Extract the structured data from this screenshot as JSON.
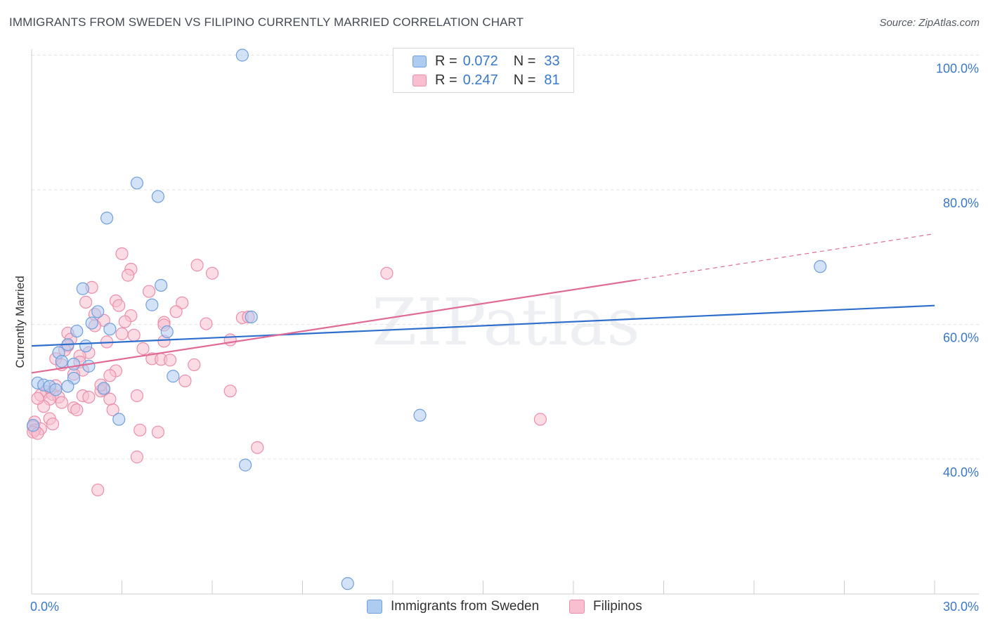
{
  "header": {
    "title": "IMMIGRANTS FROM SWEDEN VS FILIPINO CURRENTLY MARRIED CORRELATION CHART",
    "source": "Source: ZipAtlas.com"
  },
  "legend": {
    "r_label": "R =",
    "n_label": "N =",
    "rows": [
      {
        "r": "0.072",
        "n": "33"
      },
      {
        "r": "0.247",
        "n": "81"
      }
    ]
  },
  "colors": {
    "blue_fill": "#aecbf0",
    "blue_stroke": "#6f9fdc",
    "blue_line": "#2e6fcc",
    "pink_fill": "#f7bfd0",
    "pink_stroke": "#eb8eaa",
    "pink_line": "#e06b95",
    "tick_label": "#3a78c9"
  },
  "chart_data": {
    "type": "scatter",
    "title": "IMMIGRANTS FROM SWEDEN VS FILIPINO CURRENTLY MARRIED CORRELATION CHART",
    "xlabel": "",
    "ylabel": "Currently Married",
    "xlim": [
      0,
      30
    ],
    "ylim": [
      20,
      103
    ],
    "x_tick_labels": [
      "0.0%",
      "30.0%"
    ],
    "y_ticks": [
      40,
      60,
      80,
      100
    ],
    "y_tick_labels": [
      "40.0%",
      "60.0%",
      "80.0%",
      "100.0%"
    ],
    "grid": true,
    "legend_position": "top-center",
    "watermark": "ZIPatlas",
    "series": [
      {
        "name": "Immigrants from Sweden",
        "r": 0.072,
        "n": 33,
        "trend": {
          "x0": 0,
          "y0": 56.8,
          "x1": 30,
          "y1": 62.8
        },
        "points": [
          [
            7.0,
            100.0
          ],
          [
            3.5,
            81.0
          ],
          [
            4.2,
            79.0
          ],
          [
            2.5,
            75.8
          ],
          [
            26.2,
            68.6
          ],
          [
            1.7,
            65.3
          ],
          [
            4.3,
            65.8
          ],
          [
            4.0,
            62.9
          ],
          [
            2.2,
            61.9
          ],
          [
            7.3,
            61.1
          ],
          [
            2.0,
            60.2
          ],
          [
            2.6,
            59.3
          ],
          [
            4.5,
            58.9
          ],
          [
            1.5,
            59.0
          ],
          [
            1.2,
            57.0
          ],
          [
            1.8,
            56.8
          ],
          [
            0.9,
            55.8
          ],
          [
            1.0,
            54.5
          ],
          [
            1.4,
            54.1
          ],
          [
            1.9,
            53.8
          ],
          [
            1.4,
            52.0
          ],
          [
            0.2,
            51.3
          ],
          [
            4.7,
            52.3
          ],
          [
            0.4,
            51.0
          ],
          [
            0.6,
            50.8
          ],
          [
            1.2,
            50.8
          ],
          [
            2.4,
            50.5
          ],
          [
            0.8,
            50.3
          ],
          [
            12.9,
            46.5
          ],
          [
            2.9,
            45.9
          ],
          [
            0.05,
            45.0
          ],
          [
            7.1,
            39.1
          ],
          [
            10.5,
            21.5
          ]
        ]
      },
      {
        "name": "Filipinos",
        "r": 0.247,
        "n": 81,
        "trend": {
          "x0": 0,
          "y0": 52.8,
          "x1": 20.1,
          "y1": 66.6,
          "dash_x1": 29.9,
          "dash_y1": 73.4
        },
        "points": [
          [
            3.0,
            70.5
          ],
          [
            5.5,
            68.8
          ],
          [
            3.3,
            68.2
          ],
          [
            6.0,
            67.6
          ],
          [
            3.2,
            67.3
          ],
          [
            11.8,
            67.6
          ],
          [
            2.0,
            65.5
          ],
          [
            3.9,
            64.9
          ],
          [
            1.8,
            63.3
          ],
          [
            2.8,
            63.5
          ],
          [
            2.9,
            62.8
          ],
          [
            5.0,
            63.2
          ],
          [
            2.1,
            61.5
          ],
          [
            3.3,
            61.3
          ],
          [
            4.8,
            61.9
          ],
          [
            2.4,
            60.6
          ],
          [
            3.1,
            60.4
          ],
          [
            7.0,
            61.0
          ],
          [
            7.2,
            61.1
          ],
          [
            4.4,
            60.3
          ],
          [
            5.8,
            60.1
          ],
          [
            2.1,
            59.8
          ],
          [
            4.4,
            59.9
          ],
          [
            1.2,
            58.7
          ],
          [
            3.0,
            58.6
          ],
          [
            3.4,
            58.4
          ],
          [
            1.3,
            57.8
          ],
          [
            6.6,
            57.7
          ],
          [
            4.4,
            57.5
          ],
          [
            2.5,
            57.4
          ],
          [
            1.2,
            56.8
          ],
          [
            1.1,
            56.2
          ],
          [
            3.7,
            56.4
          ],
          [
            1.9,
            55.8
          ],
          [
            1.6,
            55.3
          ],
          [
            0.8,
            54.9
          ],
          [
            4.0,
            54.9
          ],
          [
            4.3,
            54.8
          ],
          [
            4.6,
            54.7
          ],
          [
            1.6,
            54.4
          ],
          [
            1.0,
            54.0
          ],
          [
            5.4,
            54.0
          ],
          [
            1.7,
            53.2
          ],
          [
            2.8,
            53.1
          ],
          [
            1.4,
            52.6
          ],
          [
            2.6,
            52.4
          ],
          [
            5.1,
            51.6
          ],
          [
            0.8,
            50.9
          ],
          [
            2.4,
            50.3
          ],
          [
            0.5,
            50.0
          ],
          [
            2.3,
            50.1
          ],
          [
            6.6,
            50.1
          ],
          [
            0.3,
            49.5
          ],
          [
            0.7,
            49.6
          ],
          [
            1.7,
            49.4
          ],
          [
            3.5,
            49.4
          ],
          [
            0.9,
            49.2
          ],
          [
            1.9,
            49.2
          ],
          [
            0.6,
            48.9
          ],
          [
            2.6,
            48.9
          ],
          [
            0.4,
            47.8
          ],
          [
            1.4,
            47.6
          ],
          [
            2.7,
            47.3
          ],
          [
            1.5,
            47.3
          ],
          [
            0.6,
            46.0
          ],
          [
            16.9,
            45.9
          ],
          [
            0.1,
            45.5
          ],
          [
            0.05,
            44.8
          ],
          [
            0.3,
            44.5
          ],
          [
            0.1,
            44.3
          ],
          [
            0.05,
            44.0
          ],
          [
            3.6,
            44.3
          ],
          [
            4.2,
            44.0
          ],
          [
            7.5,
            41.7
          ],
          [
            3.5,
            40.3
          ],
          [
            2.2,
            35.4
          ],
          [
            0.2,
            43.8
          ],
          [
            0.7,
            45.2
          ],
          [
            1.0,
            48.4
          ],
          [
            2.3,
            51.0
          ],
          [
            0.2,
            49.0
          ]
        ]
      }
    ]
  }
}
